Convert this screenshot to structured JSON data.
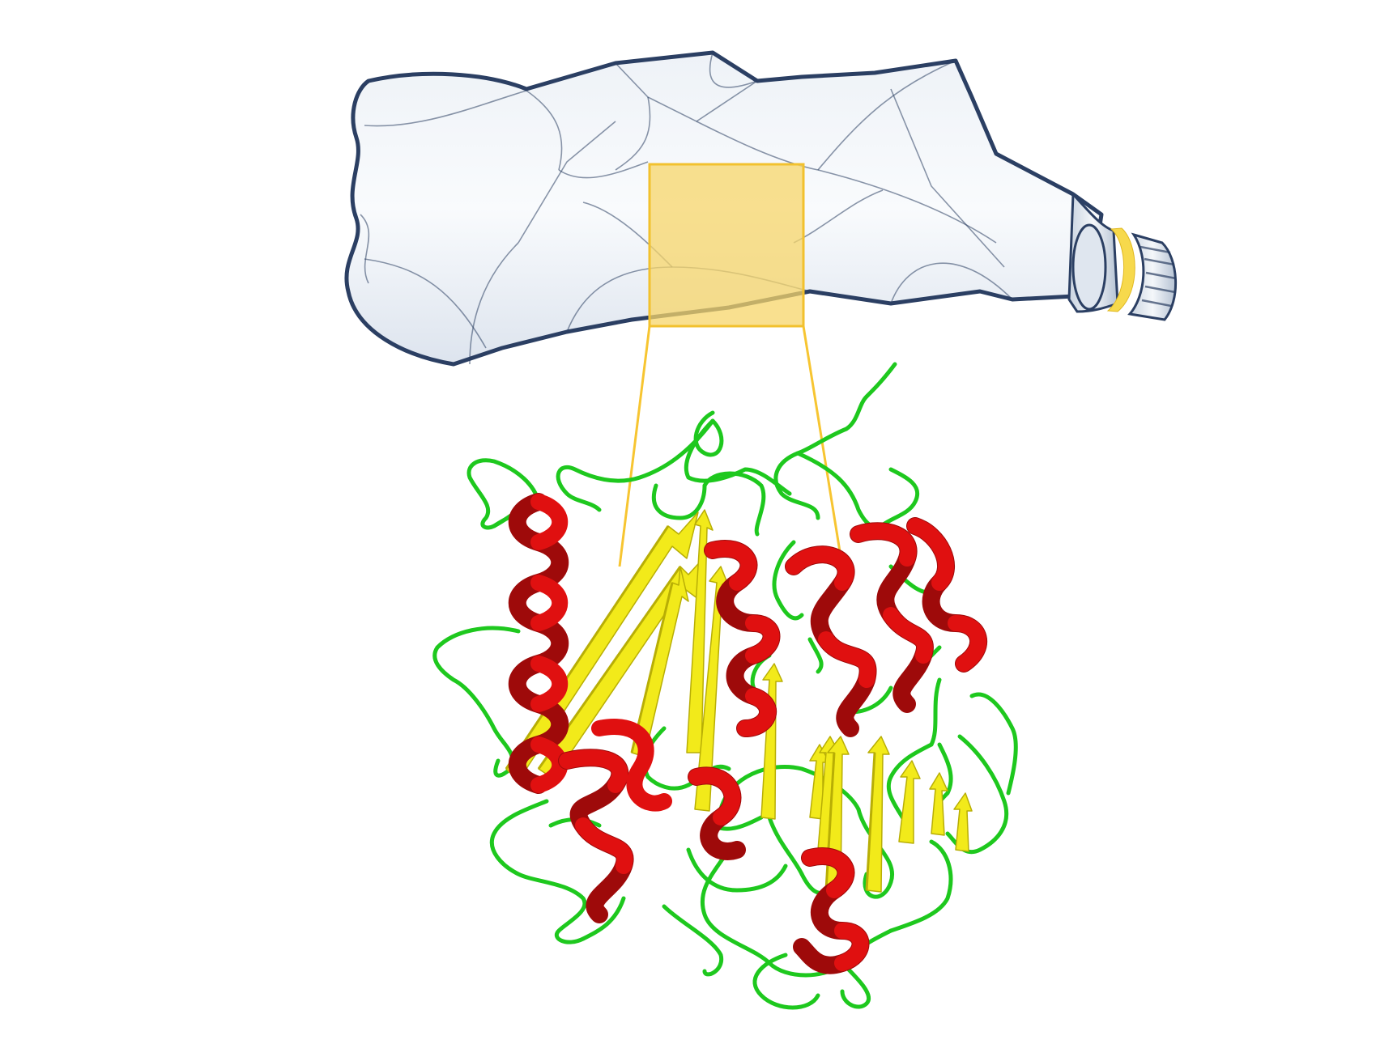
{
  "scene": {
    "background": "#ffffff",
    "bottle": {
      "icon": "crumpled-plastic-bottle",
      "outline_color": "#2b3f63",
      "fill_color": "#dfe6ef",
      "neck_ring_color": "#f7d94c"
    },
    "zoom_box": {
      "fill_color": "#f7d56a",
      "stroke_color": "#f2c12e"
    },
    "connector_color": "#f7c531",
    "protein": {
      "icon": "enzyme-ribbon-structure",
      "helix_color": "#e01010",
      "helix_dark_color": "#9e0a0a",
      "sheet_color": "#f2ea1a",
      "sheet_dark_color": "#b8ae05",
      "coil_color": "#1ec81e"
    }
  }
}
